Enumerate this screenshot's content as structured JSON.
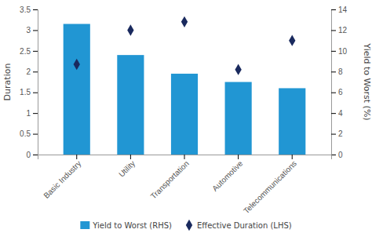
{
  "chart_data": {
    "type": "bar",
    "categories": [
      "Basic Industry",
      "Utility",
      "Transportation",
      "Automotive",
      "Telecommunications"
    ],
    "ylabel": "Duration",
    "y2label": "Yield to Worst (%)",
    "ylim": [
      0,
      3.5
    ],
    "yticks": [
      0,
      0.5,
      1,
      1.5,
      2,
      2.5,
      3,
      3.5
    ],
    "y2lim": [
      0,
      14
    ],
    "y2ticks": [
      0,
      2,
      4,
      6,
      8,
      10,
      12,
      14
    ],
    "grid": false,
    "legend": "bottom",
    "series": [
      {
        "name": "Yield to Worst (RHS)",
        "type": "bar",
        "color": "#2196d3",
        "values": [
          3.15,
          2.4,
          1.95,
          1.75,
          1.6
        ]
      },
      {
        "name": "Effective Duration (LHS)",
        "type": "scatter",
        "axis": "y2",
        "marker": "diamond",
        "color": "#1a2a5e",
        "values": [
          8.7,
          12.0,
          12.8,
          8.2,
          11.0
        ]
      }
    ]
  }
}
